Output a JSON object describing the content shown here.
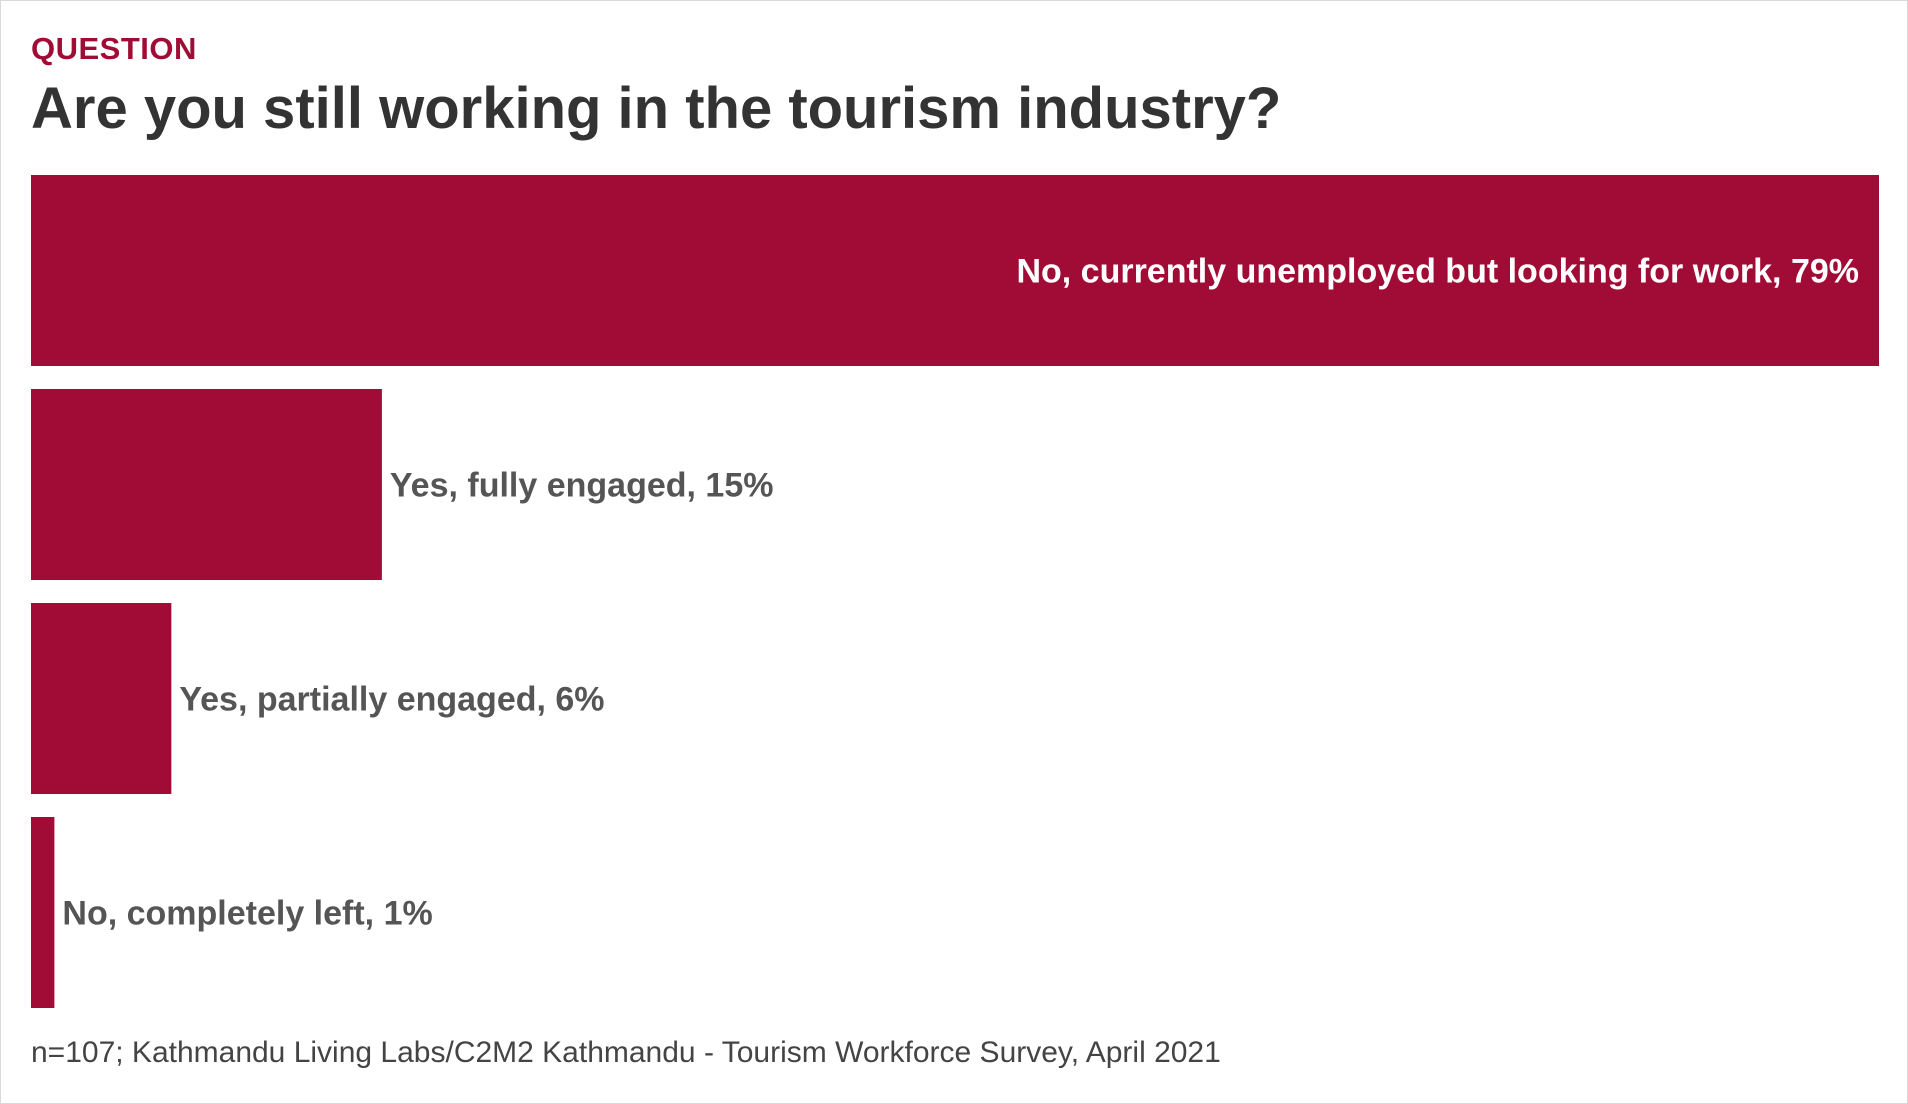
{
  "header": {
    "kicker": "QUESTION",
    "title": "Are you still working in the tourism industry?"
  },
  "chart_data": {
    "type": "bar",
    "orientation": "horizontal",
    "categories": [
      "No, currently unemployed but looking for work",
      "Yes, fully engaged",
      "Yes, partially engaged",
      "No, completely left"
    ],
    "values": [
      79,
      15,
      6,
      1
    ],
    "labels": [
      "No, currently unemployed but looking for work, 79%",
      "Yes, fully engaged, 15%",
      "Yes, partially engaged, 6%",
      "No, completely left, 1%"
    ],
    "unit": "%",
    "xlim": [
      0,
      79
    ],
    "grid": false,
    "legend": "none",
    "bar_color": "#a10c36",
    "label_color_inside": "#ffffff",
    "label_color_outside": "#555555"
  },
  "footer": {
    "source": "n=107; Kathmandu Living Labs/C2M2 Kathmandu - Tourism Workforce Survey, April 2021"
  }
}
